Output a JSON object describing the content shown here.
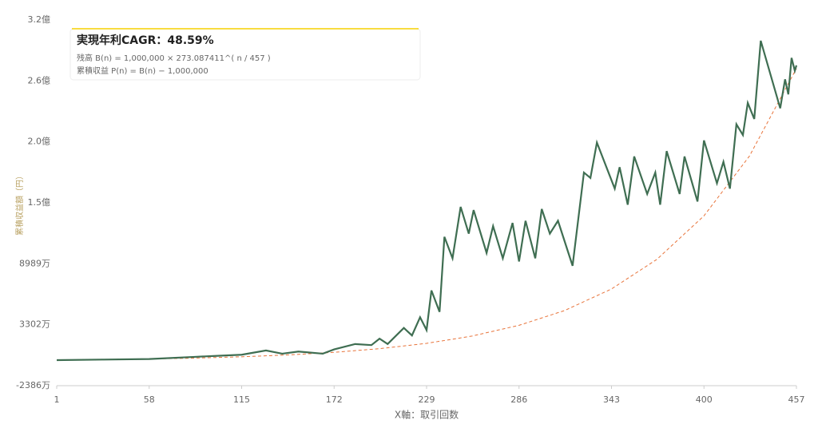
{
  "chart_data": {
    "type": "line",
    "annotations": [
      "実現年利CAGR：48.59%",
      "残高 B(n) = 1,000,000 × 273.087411^( n / 457 )",
      "累積収益 P(n) = B(n) − 1,000,000"
    ],
    "x_label": "X軸：取引回数",
    "y_label": "累積収益額（円）",
    "xlim": [
      1,
      457
    ],
    "xticks": [
      1,
      58,
      115,
      172,
      229,
      286,
      343,
      400,
      457
    ],
    "ylim": [
      -23860000,
      317370000
    ],
    "yticks": [
      {
        "value": -23860000,
        "label": "-2386万"
      },
      {
        "value": 33020000,
        "label": "3302万"
      },
      {
        "value": 89890000,
        "label": "8989万"
      },
      {
        "value": 146760000,
        "label": "1.5億"
      },
      {
        "value": 203630000,
        "label": "2.0億"
      },
      {
        "value": 260500000,
        "label": "2.6億"
      },
      {
        "value": 317370000,
        "label": "3.2億"
      }
    ],
    "grid": false,
    "series": [
      {
        "color": "#3f6e52",
        "dash": false,
        "x": [
          1,
          30,
          58,
          86,
          100,
          115,
          130,
          140,
          150,
          165,
          172,
          185,
          195,
          200,
          205,
          215,
          220,
          225,
          229,
          232,
          237,
          240,
          245,
          250,
          255,
          258,
          266,
          270,
          276,
          282,
          286,
          290,
          296,
          300,
          305,
          310,
          319,
          324,
          326,
          330,
          334,
          345,
          348,
          353,
          357,
          365,
          370,
          373,
          377,
          385,
          388,
          396,
          400,
          408,
          412,
          416,
          420,
          424,
          427,
          431,
          435,
          447,
          450,
          452,
          454,
          456,
          457
        ],
        "values": [
          0,
          500000,
          1000000,
          3000000,
          4000000,
          5000000,
          9000000,
          6000000,
          8000000,
          6000000,
          10000000,
          15000000,
          14000000,
          20000000,
          15000000,
          30000000,
          23000000,
          40000000,
          28000000,
          65000000,
          45000000,
          115000000,
          95000000,
          143000000,
          118000000,
          140000000,
          100000000,
          125000000,
          95000000,
          128000000,
          92000000,
          130000000,
          95000000,
          141000000,
          118000000,
          130000000,
          88000000,
          150000000,
          175000000,
          170000000,
          203000000,
          160000000,
          180000000,
          145000000,
          190000000,
          155000000,
          175000000,
          145000000,
          195000000,
          155000000,
          190000000,
          148000000,
          205000000,
          165000000,
          185000000,
          160000000,
          220000000,
          210000000,
          240000000,
          225000000,
          298000000,
          235000000,
          262000000,
          248000000,
          282000000,
          270000000,
          275000000
        ]
      },
      {
        "color": "#e8743b",
        "dash": true,
        "x": [
          1,
          29,
          58,
          86,
          115,
          143,
          172,
          200,
          229,
          257,
          286,
          314,
          343,
          371,
          400,
          428,
          457
        ],
        "values": [
          12350,
          430000,
          1040000,
          1870000,
          3100000,
          4790000,
          7260000,
          10650000,
          15620000,
          22440000,
          32470000,
          46200000,
          66380000,
          94020000,
          134600000,
          190300000,
          272090000
        ]
      }
    ]
  }
}
